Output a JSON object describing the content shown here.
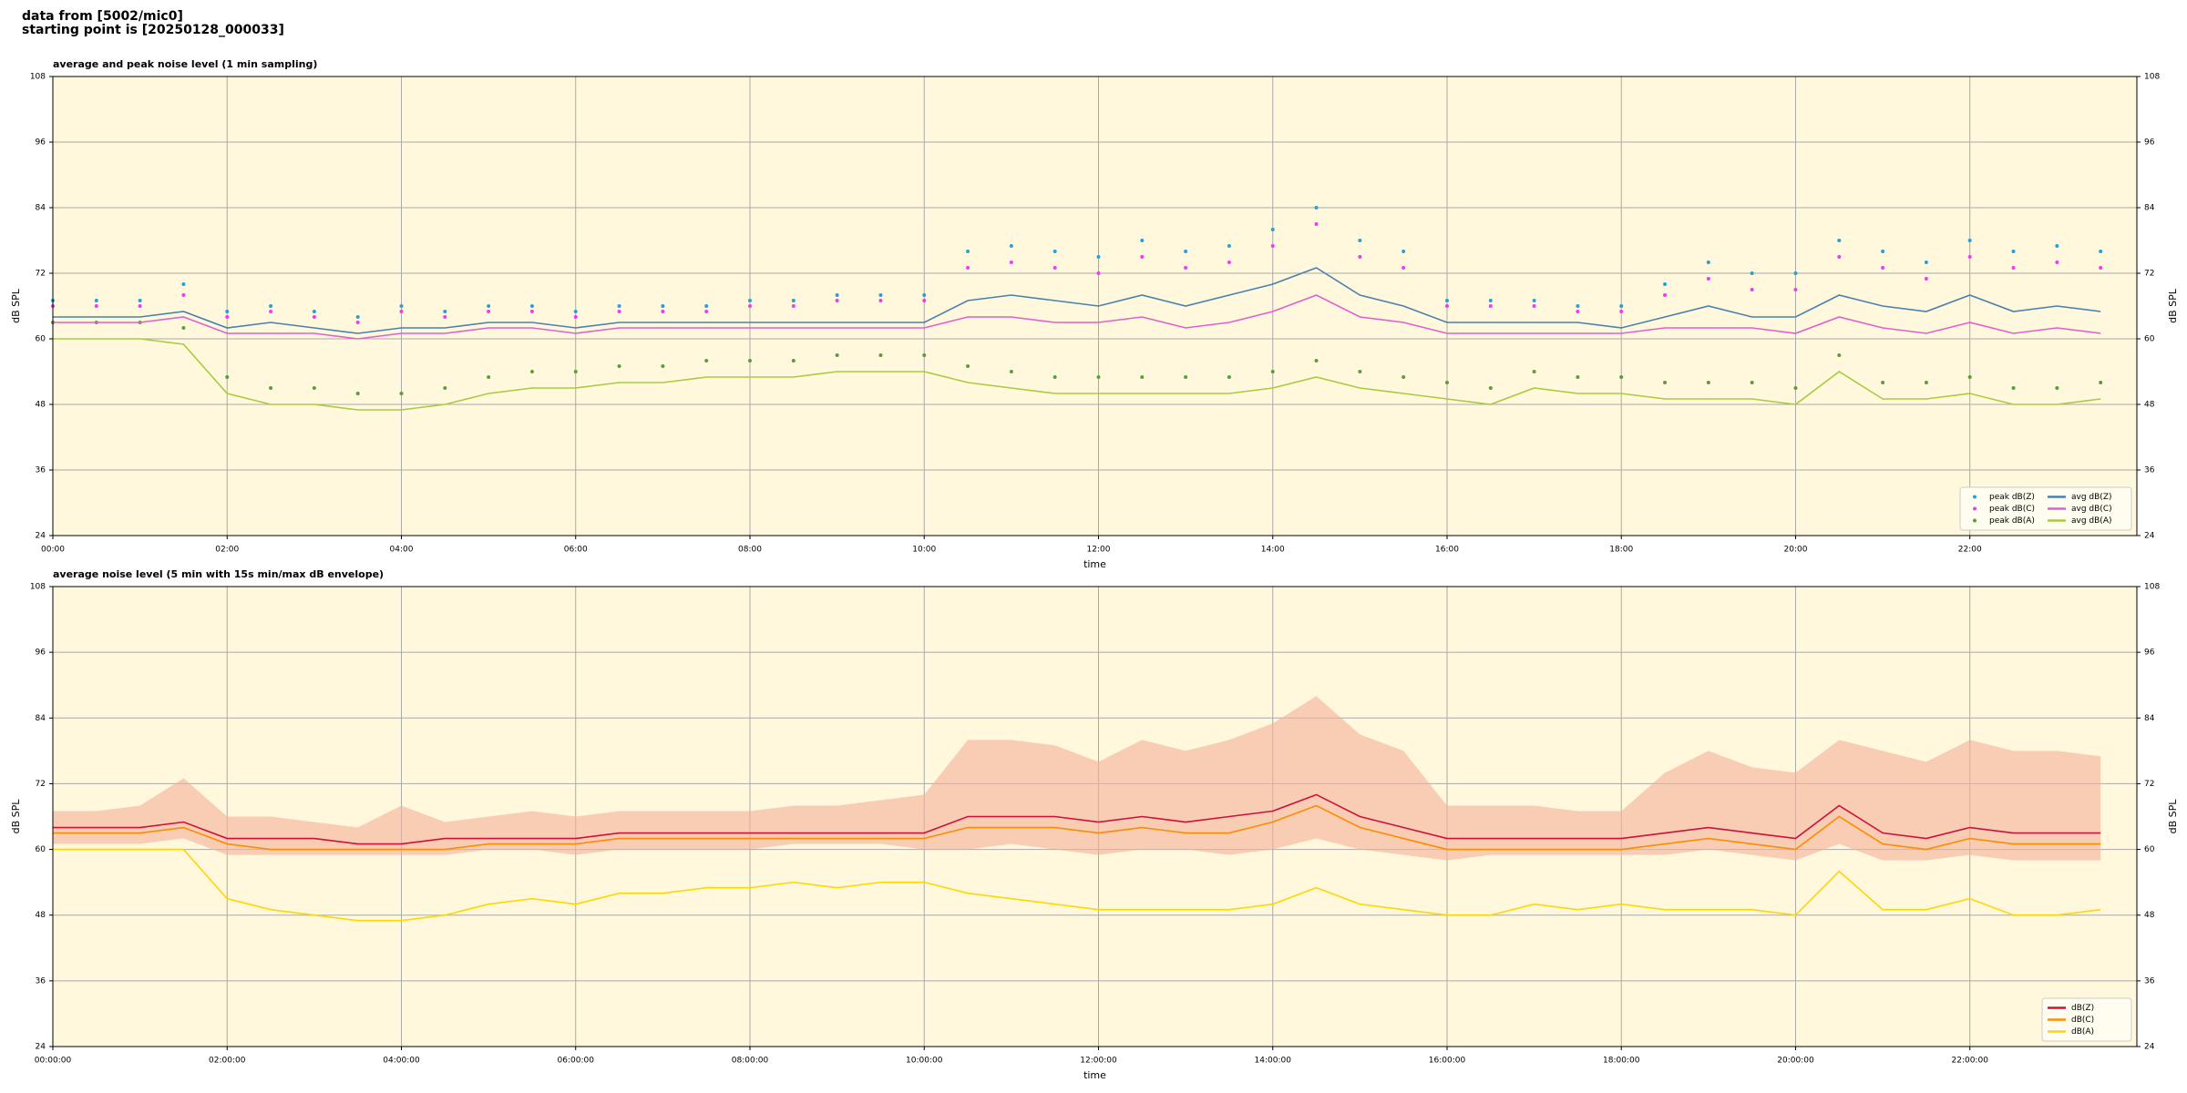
{
  "header": {
    "line1": "data from [5002/mic0]",
    "line2": "starting point is [20250128_000033]"
  },
  "chart_data": [
    {
      "type": "line",
      "title": "average and peak noise level (1 min sampling)",
      "xlabel": "time",
      "ylabel": "dB SPL",
      "x": [
        "00:00",
        "00:30",
        "01:00",
        "01:30",
        "02:00",
        "02:30",
        "03:00",
        "03:30",
        "04:00",
        "04:30",
        "05:00",
        "05:30",
        "06:00",
        "06:30",
        "07:00",
        "07:30",
        "08:00",
        "08:30",
        "09:00",
        "09:30",
        "10:00",
        "10:30",
        "11:00",
        "11:30",
        "12:00",
        "12:30",
        "13:00",
        "13:30",
        "14:00",
        "14:30",
        "15:00",
        "15:30",
        "16:00",
        "16:30",
        "17:00",
        "17:30",
        "18:00",
        "18:30",
        "19:00",
        "19:30",
        "20:00",
        "20:30",
        "21:00",
        "21:30",
        "22:00",
        "22:30",
        "23:00",
        "23:30"
      ],
      "xlim": [
        "00:00",
        "23:55"
      ],
      "xticks": [
        "00:00",
        "02:00",
        "04:00",
        "06:00",
        "08:00",
        "10:00",
        "12:00",
        "14:00",
        "16:00",
        "18:00",
        "20:00",
        "22:00"
      ],
      "ylim": [
        24,
        108
      ],
      "yticks": [
        24,
        36,
        48,
        60,
        72,
        84,
        96,
        108
      ],
      "grid": true,
      "legend": "lower right",
      "legend_ncol": 2,
      "series": [
        {
          "name": "peak dB(Z)",
          "type": "scatter",
          "color": "#2a9fd8",
          "values": [
            67,
            67,
            67,
            70,
            65,
            66,
            65,
            64,
            66,
            65,
            66,
            66,
            65,
            66,
            66,
            66,
            67,
            67,
            68,
            68,
            68,
            76,
            77,
            76,
            75,
            78,
            76,
            77,
            80,
            84,
            78,
            76,
            67,
            67,
            67,
            66,
            66,
            70,
            74,
            72,
            72,
            78,
            76,
            74,
            78,
            76,
            77,
            76
          ]
        },
        {
          "name": "peak dB(C)",
          "type": "scatter",
          "color": "#f03cf0",
          "values": [
            66,
            66,
            66,
            68,
            64,
            65,
            64,
            63,
            65,
            64,
            65,
            65,
            64,
            65,
            65,
            65,
            66,
            66,
            67,
            67,
            67,
            73,
            74,
            73,
            72,
            75,
            73,
            74,
            77,
            81,
            75,
            73,
            66,
            66,
            66,
            65,
            65,
            68,
            71,
            69,
            69,
            75,
            73,
            71,
            75,
            73,
            74,
            73
          ]
        },
        {
          "name": "peak dB(A)",
          "type": "scatter",
          "color": "#5a9e3a",
          "values": [
            63,
            63,
            63,
            62,
            53,
            51,
            51,
            50,
            50,
            51,
            53,
            54,
            54,
            55,
            55,
            56,
            56,
            56,
            57,
            57,
            57,
            55,
            54,
            53,
            53,
            53,
            53,
            53,
            54,
            56,
            54,
            53,
            52,
            51,
            54,
            53,
            53,
            52,
            52,
            52,
            51,
            57,
            52,
            52,
            53,
            51,
            51,
            52
          ]
        },
        {
          "name": "avg dB(Z)",
          "type": "line",
          "color": "#4a80b0",
          "values": [
            64,
            64,
            64,
            65,
            62,
            63,
            62,
            61,
            62,
            62,
            63,
            63,
            62,
            63,
            63,
            63,
            63,
            63,
            63,
            63,
            63,
            67,
            68,
            67,
            66,
            68,
            66,
            68,
            70,
            73,
            68,
            66,
            63,
            63,
            63,
            63,
            62,
            64,
            66,
            64,
            64,
            68,
            66,
            65,
            68,
            65,
            66,
            65
          ]
        },
        {
          "name": "avg dB(C)",
          "type": "line",
          "color": "#e060d0",
          "values": [
            63,
            63,
            63,
            64,
            61,
            61,
            61,
            60,
            61,
            61,
            62,
            62,
            61,
            62,
            62,
            62,
            62,
            62,
            62,
            62,
            62,
            64,
            64,
            63,
            63,
            64,
            62,
            63,
            65,
            68,
            64,
            63,
            61,
            61,
            61,
            61,
            61,
            62,
            62,
            62,
            61,
            64,
            62,
            61,
            63,
            61,
            62,
            61
          ]
        },
        {
          "name": "avg dB(A)",
          "type": "line",
          "color": "#a8cc40",
          "values": [
            60,
            60,
            60,
            59,
            50,
            48,
            48,
            47,
            47,
            48,
            50,
            51,
            51,
            52,
            52,
            53,
            53,
            53,
            54,
            54,
            54,
            52,
            51,
            50,
            50,
            50,
            50,
            50,
            51,
            53,
            51,
            50,
            49,
            48,
            51,
            50,
            50,
            49,
            49,
            49,
            48,
            54,
            49,
            49,
            50,
            48,
            48,
            49
          ]
        }
      ]
    },
    {
      "type": "line",
      "title": "average noise level (5 min with 15s min/max dB envelope)",
      "xlabel": "time",
      "ylabel": "dB SPL",
      "x": [
        "00:00:00",
        "00:30:00",
        "01:00:00",
        "01:30:00",
        "02:00:00",
        "02:30:00",
        "03:00:00",
        "03:30:00",
        "04:00:00",
        "04:30:00",
        "05:00:00",
        "05:30:00",
        "06:00:00",
        "06:30:00",
        "07:00:00",
        "07:30:00",
        "08:00:00",
        "08:30:00",
        "09:00:00",
        "09:30:00",
        "10:00:00",
        "10:30:00",
        "11:00:00",
        "11:30:00",
        "12:00:00",
        "12:30:00",
        "13:00:00",
        "13:30:00",
        "14:00:00",
        "14:30:00",
        "15:00:00",
        "15:30:00",
        "16:00:00",
        "16:30:00",
        "17:00:00",
        "17:30:00",
        "18:00:00",
        "18:30:00",
        "19:00:00",
        "19:30:00",
        "20:00:00",
        "20:30:00",
        "21:00:00",
        "21:30:00",
        "22:00:00",
        "22:30:00",
        "23:00:00",
        "23:30:00"
      ],
      "xlim": [
        "00:00:00",
        "23:55:00"
      ],
      "xticks": [
        "00:00:00",
        "02:00:00",
        "04:00:00",
        "06:00:00",
        "08:00:00",
        "10:00:00",
        "12:00:00",
        "14:00:00",
        "16:00:00",
        "18:00:00",
        "20:00:00",
        "22:00:00"
      ],
      "ylim": [
        24,
        108
      ],
      "yticks": [
        24,
        36,
        48,
        60,
        72,
        84,
        96,
        108
      ],
      "grid": true,
      "legend": "lower right",
      "legend_ncol": 1,
      "envelope": {
        "color": "#f4b09a",
        "low": [
          61,
          61,
          61,
          62,
          59,
          59,
          59,
          59,
          59,
          59,
          60,
          60,
          59,
          60,
          60,
          60,
          60,
          61,
          61,
          61,
          60,
          60,
          61,
          60,
          59,
          60,
          60,
          59,
          60,
          62,
          60,
          59,
          58,
          59,
          59,
          59,
          59,
          59,
          60,
          59,
          58,
          61,
          58,
          58,
          59,
          58,
          58,
          58
        ],
        "high": [
          67,
          67,
          68,
          73,
          66,
          66,
          65,
          64,
          68,
          65,
          66,
          67,
          66,
          67,
          67,
          67,
          67,
          68,
          68,
          69,
          70,
          80,
          80,
          79,
          76,
          80,
          78,
          80,
          83,
          88,
          81,
          78,
          68,
          68,
          68,
          67,
          67,
          74,
          78,
          75,
          74,
          80,
          78,
          76,
          80,
          78,
          78,
          77
        ]
      },
      "series": [
        {
          "name": "dB(Z)",
          "type": "line",
          "color": "#d0103a",
          "values": [
            64,
            64,
            64,
            65,
            62,
            62,
            62,
            61,
            61,
            62,
            62,
            62,
            62,
            63,
            63,
            63,
            63,
            63,
            63,
            63,
            63,
            66,
            66,
            66,
            65,
            66,
            65,
            66,
            67,
            70,
            66,
            64,
            62,
            62,
            62,
            62,
            62,
            63,
            64,
            63,
            62,
            68,
            63,
            62,
            64,
            63,
            63,
            63
          ]
        },
        {
          "name": "dB(C)",
          "type": "line",
          "color": "#ff8c00",
          "values": [
            63,
            63,
            63,
            64,
            61,
            60,
            60,
            60,
            60,
            60,
            61,
            61,
            61,
            62,
            62,
            62,
            62,
            62,
            62,
            62,
            62,
            64,
            64,
            64,
            63,
            64,
            63,
            63,
            65,
            68,
            64,
            62,
            60,
            60,
            60,
            60,
            60,
            61,
            62,
            61,
            60,
            66,
            61,
            60,
            62,
            61,
            61,
            61
          ]
        },
        {
          "name": "dB(A)",
          "type": "line",
          "color": "#ffd700",
          "values": [
            60,
            60,
            60,
            60,
            51,
            49,
            48,
            47,
            47,
            48,
            50,
            51,
            50,
            52,
            52,
            53,
            53,
            54,
            53,
            54,
            54,
            52,
            51,
            50,
            49,
            49,
            49,
            49,
            50,
            53,
            50,
            49,
            48,
            48,
            50,
            49,
            50,
            49,
            49,
            49,
            48,
            56,
            49,
            49,
            51,
            48,
            48,
            49
          ]
        }
      ]
    }
  ]
}
